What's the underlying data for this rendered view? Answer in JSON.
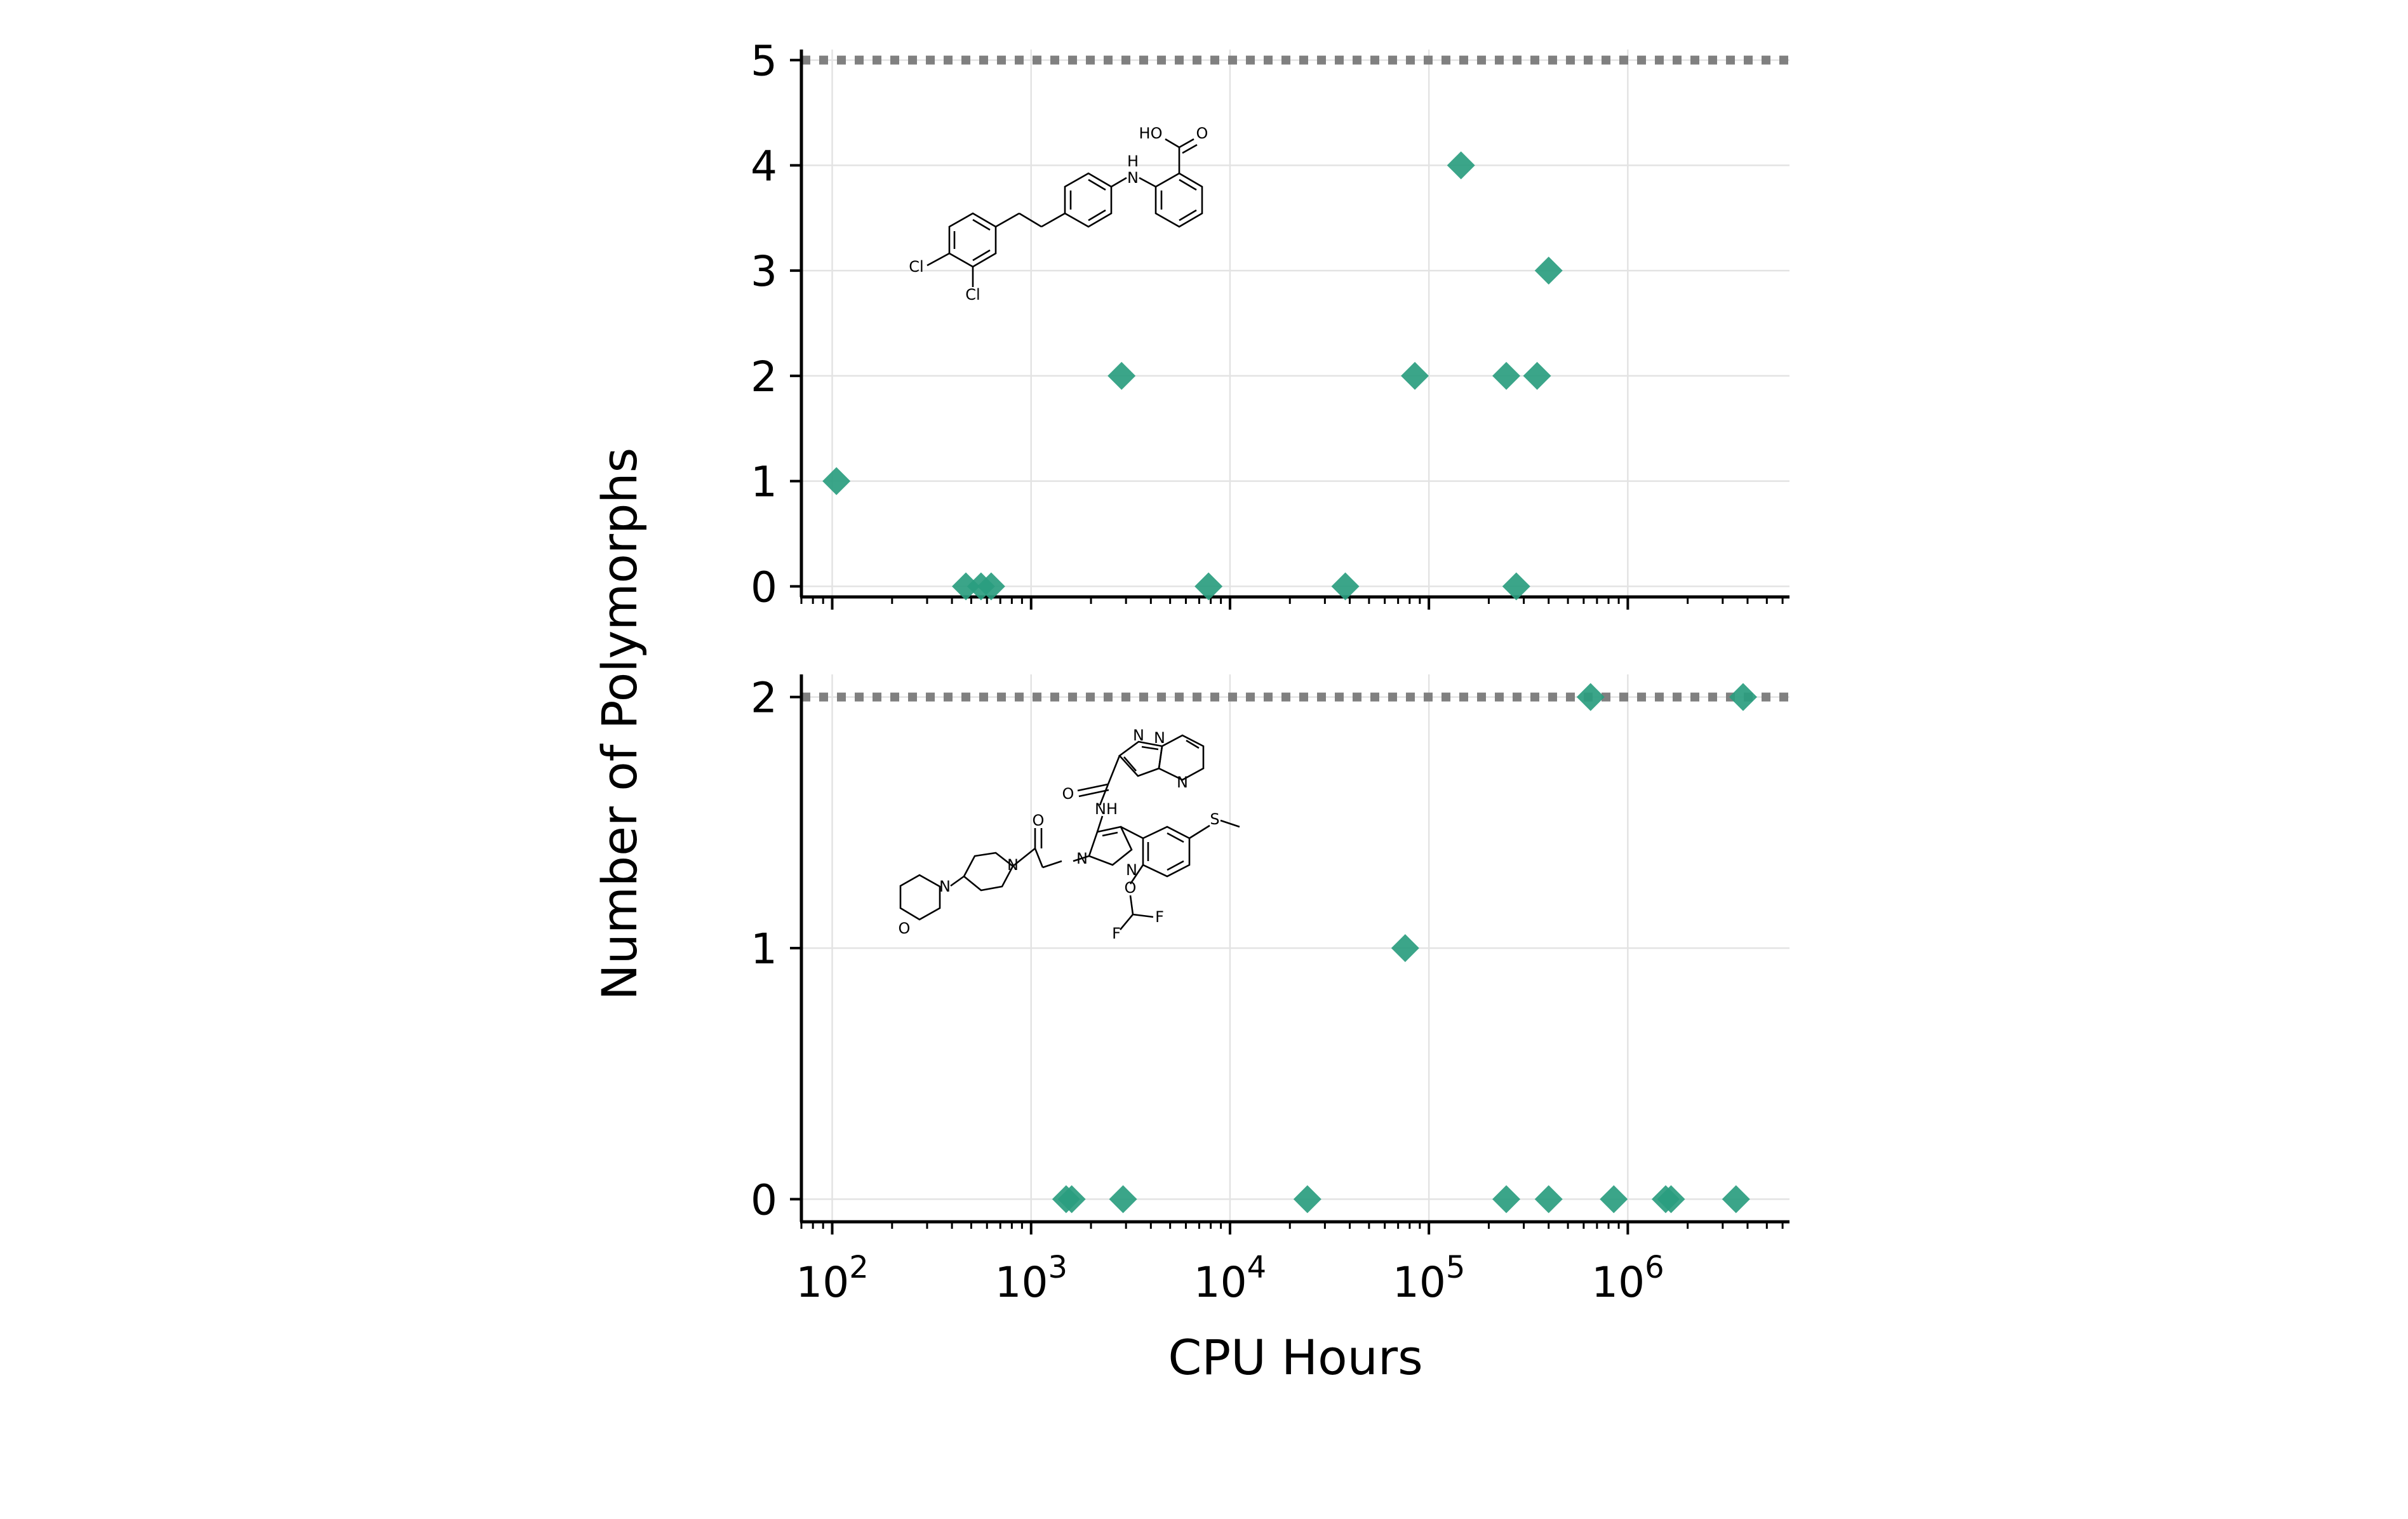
{
  "chart_data": [
    {
      "type": "scatter",
      "panel": "top",
      "xscale": "log",
      "xlim": [
        70,
        6500000
      ],
      "ylim": [
        -0.1,
        5.1
      ],
      "yticks": [
        "0",
        "1",
        "2",
        "3",
        "4",
        "5"
      ],
      "reference_line": {
        "y": 5,
        "style": "dotted",
        "color": "#808080"
      },
      "marker": "diamond",
      "color": "#2a9d7f",
      "grid": true,
      "points": [
        {
          "x": 105,
          "y": 1
        },
        {
          "x": 470,
          "y": 0
        },
        {
          "x": 560,
          "y": 0
        },
        {
          "x": 630,
          "y": 0
        },
        {
          "x": 2850,
          "y": 2
        },
        {
          "x": 7800,
          "y": 0
        },
        {
          "x": 38000,
          "y": 0
        },
        {
          "x": 85000,
          "y": 2
        },
        {
          "x": 145000,
          "y": 4
        },
        {
          "x": 245000,
          "y": 2
        },
        {
          "x": 275000,
          "y": 0
        },
        {
          "x": 350000,
          "y": 2
        },
        {
          "x": 400000,
          "y": 3
        }
      ],
      "molecule_labels": [
        "HO",
        "O",
        "H",
        "N",
        "Cl",
        "Cl"
      ]
    },
    {
      "type": "scatter",
      "panel": "bottom",
      "xscale": "log",
      "xlim": [
        70,
        6500000
      ],
      "ylim": [
        -0.09,
        2.09
      ],
      "yticks": [
        "0",
        "1",
        "2"
      ],
      "reference_line": {
        "y": 2,
        "style": "dotted",
        "color": "#808080"
      },
      "marker": "diamond",
      "color": "#2a9d7f",
      "grid": true,
      "points": [
        {
          "x": 1500,
          "y": 0
        },
        {
          "x": 1600,
          "y": 0
        },
        {
          "x": 2900,
          "y": 0
        },
        {
          "x": 24500,
          "y": 0
        },
        {
          "x": 76000,
          "y": 1
        },
        {
          "x": 245000,
          "y": 0
        },
        {
          "x": 400000,
          "y": 0
        },
        {
          "x": 850000,
          "y": 0
        },
        {
          "x": 1550000,
          "y": 0
        },
        {
          "x": 1650000,
          "y": 0
        },
        {
          "x": 3500000,
          "y": 0
        },
        {
          "x": 650000,
          "y": 2
        },
        {
          "x": 3800000,
          "y": 2
        }
      ],
      "molecule_labels": [
        "N",
        "N",
        "N",
        "O",
        "NH",
        "S",
        "O",
        "N",
        "N",
        "N",
        "N",
        "O",
        "F",
        "F",
        "O"
      ]
    }
  ],
  "axes": {
    "xlabel": "CPU Hours",
    "ylabel": "Number of Polymorphs",
    "xtick_labels": [
      {
        "base": "10",
        "exp": "2"
      },
      {
        "base": "10",
        "exp": "3"
      },
      {
        "base": "10",
        "exp": "4"
      },
      {
        "base": "10",
        "exp": "5"
      },
      {
        "base": "10",
        "exp": "6"
      }
    ]
  }
}
